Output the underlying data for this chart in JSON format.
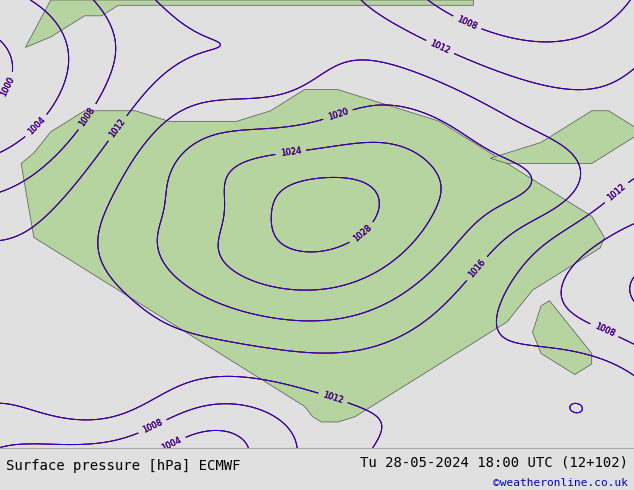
{
  "title_left": "Surface pressure [hPa] ECMWF",
  "title_right": "Tu 28-05-2024 18:00 UTC (12+102)",
  "credit": "©weatheronline.co.uk",
  "bg_color": "#e0e0e0",
  "map_ocean_color": "#c8dff0",
  "map_land_color": "#b5d4a0",
  "bottom_bar_color": "#e8e8e8",
  "title_fontsize": 10,
  "credit_color": "#0000cc",
  "fig_width": 6.34,
  "fig_height": 4.9,
  "africa_x": [
    -17.5,
    -16,
    -15,
    -14,
    -12,
    -10,
    -8,
    -6,
    -4,
    -2,
    0,
    2,
    4,
    6,
    8,
    10,
    12,
    14,
    16,
    18,
    20,
    22,
    24,
    26,
    28,
    30,
    32,
    34,
    36,
    38,
    40,
    42,
    44,
    46,
    48,
    50,
    51.5,
    51,
    49,
    47,
    45,
    43,
    42,
    41,
    40,
    38,
    36,
    34,
    32,
    30,
    28,
    26,
    24,
    22,
    20,
    18,
    17,
    16,
    14,
    12,
    10,
    8,
    6,
    4,
    2,
    0,
    -2,
    -4,
    -6,
    -8,
    -10,
    -12,
    -14,
    -16,
    -17.5
  ],
  "africa_y": [
    14,
    16,
    18,
    20,
    22,
    24,
    24,
    24,
    24,
    23,
    22,
    22,
    22,
    22,
    22,
    23,
    24,
    26,
    28,
    28,
    28,
    27,
    26,
    25,
    24,
    23,
    22,
    20,
    18,
    16,
    14,
    12,
    10,
    8,
    6,
    4,
    0,
    -2,
    -4,
    -6,
    -8,
    -10,
    -12,
    -14,
    -16,
    -18,
    -20,
    -22,
    -24,
    -26,
    -28,
    -30,
    -32,
    -34,
    -35,
    -35,
    -34,
    -32,
    -30,
    -28,
    -26,
    -24,
    -22,
    -20,
    -18,
    -16,
    -14,
    -12,
    -10,
    -8,
    -6,
    -4,
    -2,
    0,
    14
  ],
  "mad_x": [
    44,
    45,
    46,
    48,
    50,
    50,
    48,
    46,
    44,
    43,
    44
  ],
  "mad_y": [
    -13,
    -12,
    -14,
    -18,
    -22,
    -24,
    -26,
    -24,
    -22,
    -18,
    -13
  ],
  "arab_x": [
    38,
    40,
    42,
    44,
    46,
    48,
    50,
    52,
    54,
    56,
    54,
    52,
    50,
    48,
    46,
    44,
    42,
    40,
    38
  ],
  "arab_y": [
    15,
    16,
    17,
    18,
    20,
    22,
    24,
    24,
    22,
    20,
    18,
    16,
    14,
    14,
    14,
    14,
    14,
    14,
    15
  ],
  "europe_x": [
    -17,
    -14,
    -12,
    -10,
    -8,
    -6,
    -4,
    -2,
    0,
    2,
    4,
    6,
    8,
    10,
    12,
    14,
    16,
    18,
    20,
    22,
    24,
    26,
    28,
    30,
    32,
    34,
    36,
    36,
    34,
    30,
    26,
    22,
    18,
    14,
    10,
    6,
    2,
    -2,
    -6,
    -10,
    -14,
    -17
  ],
  "europe_y": [
    36,
    38,
    40,
    42,
    42,
    44,
    44,
    44,
    44,
    44,
    44,
    44,
    44,
    44,
    44,
    44,
    44,
    44,
    44,
    44,
    44,
    44,
    44,
    44,
    44,
    44,
    44,
    45,
    45,
    45,
    45,
    45,
    45,
    45,
    45,
    45,
    45,
    45,
    45,
    45,
    45,
    36
  ],
  "xlim": [
    -20,
    55
  ],
  "ylim": [
    -40,
    45
  ]
}
